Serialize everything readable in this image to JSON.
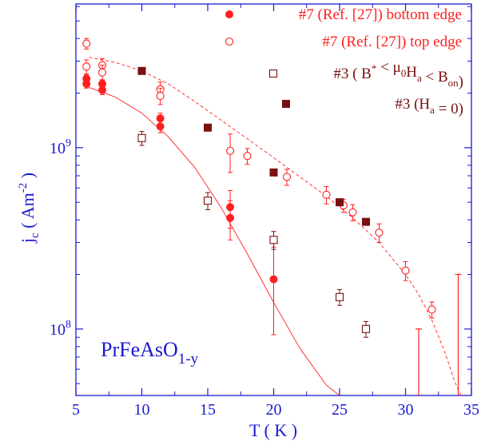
{
  "chart_data": {
    "type": "scatter",
    "xlabel": "T ( K )",
    "ylabel_base": "j",
    "ylabel_sub": "c",
    "ylabel_rest": " ( Am",
    "ylabel_sup": "-2",
    "ylabel_end": " )",
    "xlim": [
      5,
      35
    ],
    "ylim": [
      43000000,
      6200000000
    ],
    "yscale": "log",
    "x_ticks": [
      5,
      10,
      15,
      20,
      25,
      30,
      35
    ],
    "x_tick_labels": [
      "5",
      "10",
      "15",
      "20",
      "25",
      "30",
      "35"
    ],
    "y_ticks": [
      100000000,
      1000000000
    ],
    "y_tick_base": "10",
    "y_tick_exps": [
      "8",
      "9"
    ],
    "annotation": {
      "base": "PrFeAsO",
      "sub": "1-y"
    },
    "colors": {
      "red": "#ff1f1f",
      "dark": "#7a1010",
      "blue": "#1a1ad0"
    },
    "series": [
      {
        "key": "bottom",
        "legend": {
          "pre": "#7 (Ref. [27]) bottom edge"
        },
        "color": "#ff1f1f",
        "marker": "filled-circle",
        "points": [
          {
            "x": 5.8,
            "y": 2400000000,
            "err": 120000000
          },
          {
            "x": 5.8,
            "y": 2250000000,
            "err": 120000000
          },
          {
            "x": 7.0,
            "y": 2250000000,
            "err": 120000000
          },
          {
            "x": 7.0,
            "y": 2080000000,
            "err": 120000000
          },
          {
            "x": 11.4,
            "y": 1450000000,
            "err": 100000000
          },
          {
            "x": 11.4,
            "y": 1310000000,
            "err": 100000000
          },
          {
            "x": 16.7,
            "y": 470000000,
            "err": 110000000
          },
          {
            "x": 16.7,
            "y": 410000000,
            "err": 100000000
          },
          {
            "x": 20.0,
            "y": 188000000,
            "err": 95000000
          }
        ]
      },
      {
        "key": "top",
        "legend": {
          "pre": "#7 (Ref. [27]) top edge"
        },
        "color": "#ff1f1f",
        "marker": "open-circle",
        "points": [
          {
            "x": 5.8,
            "y": 3750000000,
            "err": 250000000
          },
          {
            "x": 5.8,
            "y": 2800000000,
            "err": 250000000
          },
          {
            "x": 7.0,
            "y": 2850000000,
            "err": 250000000
          },
          {
            "x": 7.0,
            "y": 2600000000,
            "err": 250000000
          },
          {
            "x": 11.4,
            "y": 2100000000,
            "err": 200000000
          },
          {
            "x": 11.4,
            "y": 1930000000,
            "err": 200000000
          },
          {
            "x": 16.7,
            "y": 960000000,
            "err": 230000000
          },
          {
            "x": 18.0,
            "y": 900000000,
            "err": 90000000
          },
          {
            "x": 21.0,
            "y": 690000000,
            "err": 70000000
          },
          {
            "x": 24.0,
            "y": 550000000,
            "err": 60000000
          },
          {
            "x": 25.3,
            "y": 480000000,
            "err": 40000000
          },
          {
            "x": 26.0,
            "y": 440000000,
            "err": 45000000
          },
          {
            "x": 28.0,
            "y": 340000000,
            "err": 40000000
          },
          {
            "x": 30.0,
            "y": 210000000,
            "err": 25000000
          },
          {
            "x": 32.0,
            "y": 128000000,
            "err": 13000000
          }
        ]
      },
      {
        "key": "open-square",
        "legend": {
          "pre": "#3 ( B",
          "sup": "*",
          "mid1": " < μ",
          "sub1": "0",
          "mid2": "H",
          "sub2": "a",
          "mid3": " < B",
          "sub3": "on",
          "post": ")"
        },
        "color": "#7a1010",
        "marker": "open-square",
        "points": [
          {
            "x": 10.0,
            "y": 1130000000,
            "err": 100000000
          },
          {
            "x": 15.0,
            "y": 510000000,
            "err": 55000000
          },
          {
            "x": 20.0,
            "y": 310000000,
            "err": 35000000
          },
          {
            "x": 25.0,
            "y": 150000000,
            "err": 15000000
          },
          {
            "x": 27.0,
            "y": 100000000,
            "err": 10000000
          }
        ]
      },
      {
        "key": "filled-square",
        "legend": {
          "pre": "#3 (H",
          "sub1": "a",
          "post": " = 0)"
        },
        "color": "#7a1010",
        "marker": "filled-square",
        "points": [
          {
            "x": 10.0,
            "y": 2650000000,
            "err": 0
          },
          {
            "x": 15.0,
            "y": 1290000000,
            "err": 0
          },
          {
            "x": 20.0,
            "y": 730000000,
            "err": 0
          },
          {
            "x": 25.0,
            "y": 500000000,
            "err": 0
          },
          {
            "x": 27.0,
            "y": 390000000,
            "err": 0
          }
        ]
      }
    ],
    "bottom_fit": {
      "x": [
        6,
        8,
        10,
        12,
        14,
        16,
        18,
        20,
        22,
        24,
        25
      ],
      "y": [
        2150000000,
        1900000000,
        1550000000,
        1150000000,
        780000000,
        470000000,
        260000000,
        140000000,
        78000000,
        49000000,
        43000000
      ]
    },
    "top_fit": {
      "x": [
        6,
        8,
        10,
        12,
        14,
        16,
        18,
        20,
        22,
        24,
        26,
        28,
        30,
        31,
        32,
        33,
        33.7,
        34.2
      ],
      "y": [
        3150000000,
        2950000000,
        2650000000,
        2250000000,
        1800000000,
        1420000000,
        1120000000,
        880000000,
        690000000,
        540000000,
        410000000,
        300000000,
        200000000,
        155000000,
        112000000,
        74000000,
        52000000,
        43000000
      ]
    },
    "bottom_lines": [
      {
        "x": 31.0,
        "y_top": 100000000,
        "color": "#ff1f1f"
      },
      {
        "x": 34.0,
        "y_top": 200000000,
        "color": "#ff1f1f"
      }
    ]
  }
}
